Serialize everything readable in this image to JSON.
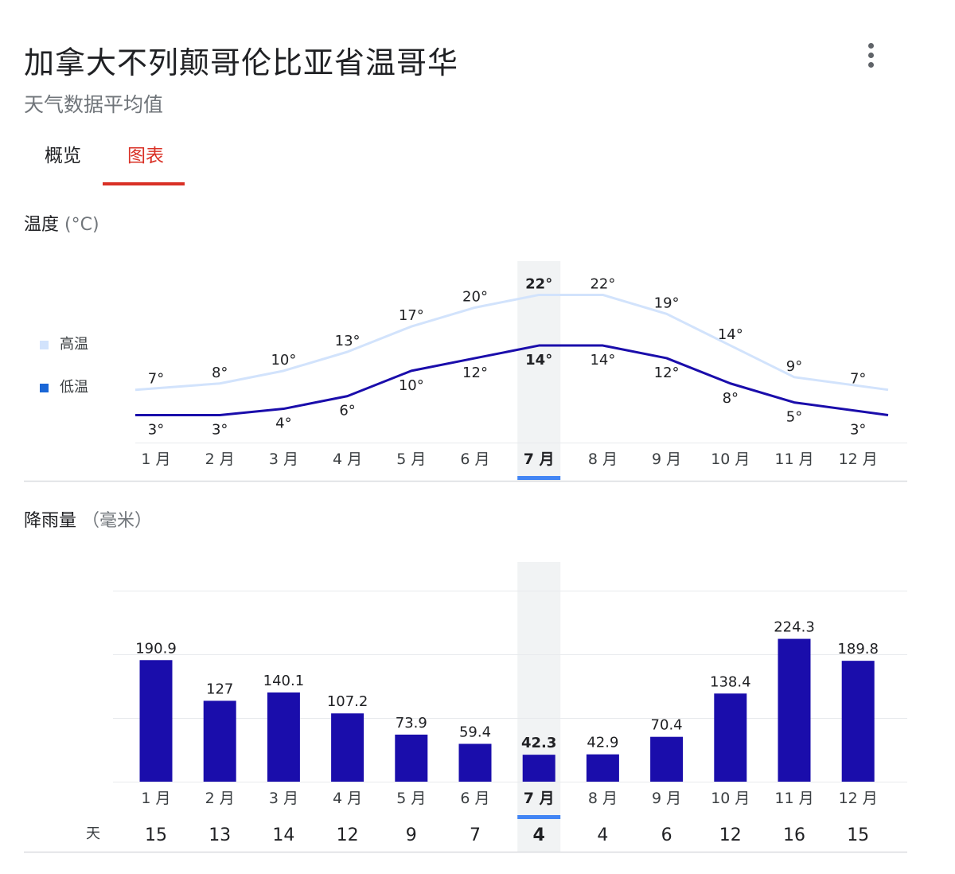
{
  "header": {
    "title": "加拿大不列颠哥伦比亚省温哥华",
    "subtitle": "天气数据平均值",
    "menu_icon": "more-vert-icon"
  },
  "tabs": [
    {
      "label": "概览",
      "active": false
    },
    {
      "label": "图表",
      "active": true
    }
  ],
  "colors": {
    "accent": "#d93025",
    "high_line": "#d2e3fc",
    "low_line": "#1a0dab",
    "bar": "#1a0dab",
    "highlight": "#f1f3f4",
    "selected_marker": "#4285f4"
  },
  "temperature": {
    "title": "温度",
    "unit": "(°C)",
    "legend": [
      {
        "label": "高温",
        "color": "#d2e3fc"
      },
      {
        "label": "低温",
        "color": "#1a66d6"
      }
    ]
  },
  "precipitation": {
    "title": "降雨量",
    "unit": "（毫米）",
    "days_label": "天"
  },
  "chart_data": [
    {
      "type": "line",
      "categories": [
        "1 月",
        "2 月",
        "3 月",
        "4 月",
        "5 月",
        "6 月",
        "7 月",
        "8 月",
        "9 月",
        "10 月",
        "11 月",
        "12 月"
      ],
      "series": [
        {
          "name": "高温",
          "values": [
            7,
            8,
            10,
            13,
            17,
            20,
            22,
            22,
            19,
            14,
            9,
            7
          ]
        },
        {
          "name": "低温",
          "values": [
            3,
            3,
            4,
            6,
            10,
            12,
            14,
            14,
            12,
            8,
            5,
            3
          ]
        }
      ],
      "value_suffix": "°",
      "highlighted_index": 6,
      "grid": false,
      "legend_position": "left"
    },
    {
      "type": "bar",
      "categories": [
        "1 月",
        "2 月",
        "3 月",
        "4 月",
        "5 月",
        "6 月",
        "7 月",
        "8 月",
        "9 月",
        "10 月",
        "11 月",
        "12 月"
      ],
      "values": [
        190.9,
        127,
        140.1,
        107.2,
        73.9,
        59.4,
        42.3,
        42.9,
        70.4,
        138.4,
        224.3,
        189.8
      ],
      "value_labels": [
        "190.9",
        "127",
        "140.1",
        "107.2",
        "73.9",
        "59.4",
        "42.3",
        "42.9",
        "70.4",
        "138.4",
        "224.3",
        "189.8"
      ],
      "days": [
        15,
        13,
        14,
        12,
        9,
        7,
        4,
        4,
        6,
        12,
        16,
        15
      ],
      "highlighted_index": 6,
      "grid": true
    }
  ]
}
